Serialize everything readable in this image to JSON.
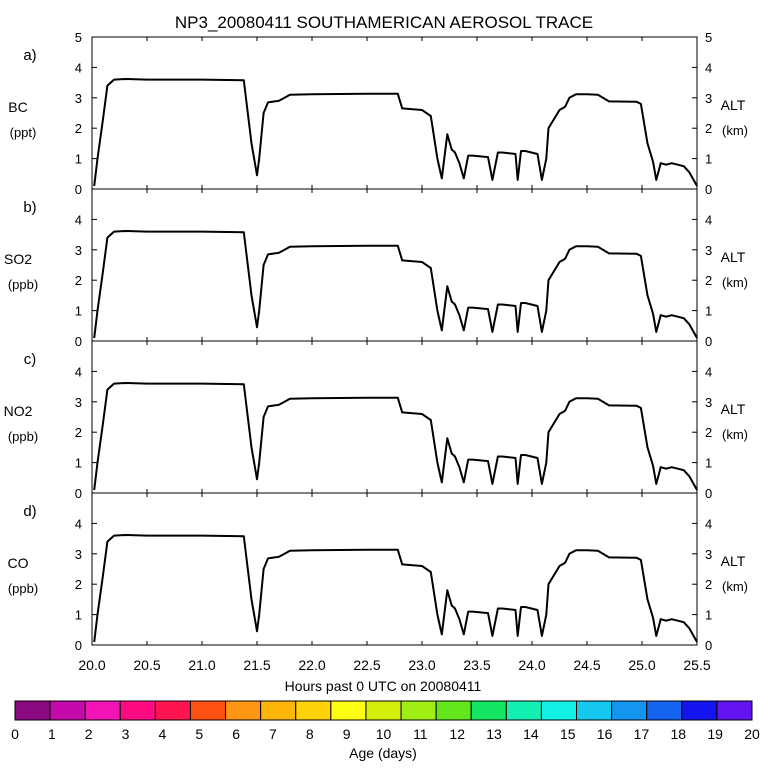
{
  "chart_data": {
    "type": "line",
    "title": "NP3_20080411 SOUTHAMERICAN AEROSOL TRACE",
    "xlabel": "Hours past 0 UTC on 20080411",
    "xlim": [
      20.0,
      25.5
    ],
    "x_ticks": [
      "20.0",
      "20.5",
      "21.0",
      "21.5",
      "22.0",
      "22.5",
      "23.0",
      "23.5",
      "24.0",
      "24.5",
      "25.0",
      "25.5"
    ],
    "right_label": "ALT",
    "right_unit": "(km)",
    "panels": [
      {
        "letter": "a)",
        "label": "BC",
        "unit": "(ppt)",
        "ylim": [
          0,
          5
        ],
        "y_ticks": [
          "0",
          "1",
          "2",
          "3",
          "4",
          "5"
        ],
        "right_ticks": [
          "0",
          "1",
          "2",
          "3",
          "4",
          "5"
        ]
      },
      {
        "letter": "b)",
        "label": "SO2",
        "unit": "(ppb)",
        "ylim": [
          0,
          5
        ],
        "y_ticks": [
          "0",
          "1",
          "2",
          "3",
          "4"
        ],
        "right_ticks": [
          "0",
          "1",
          "2",
          "3",
          "4"
        ]
      },
      {
        "letter": "c)",
        "label": "NO2",
        "unit": "(ppb)",
        "ylim": [
          0,
          5
        ],
        "y_ticks": [
          "0",
          "1",
          "2",
          "3",
          "4"
        ],
        "right_ticks": [
          "0",
          "1",
          "2",
          "3",
          "4"
        ]
      },
      {
        "letter": "d)",
        "label": "CO",
        "unit": "(ppb)",
        "ylim": [
          0,
          5
        ],
        "y_ticks": [
          "0",
          "1",
          "2",
          "3",
          "4"
        ],
        "right_ticks": [
          "0",
          "1",
          "2",
          "3",
          "4"
        ]
      }
    ],
    "altitude_km": {
      "x": [
        20.02,
        20.05,
        20.1,
        20.14,
        20.2,
        20.3,
        20.5,
        21.0,
        21.38,
        21.45,
        21.5,
        21.52,
        21.56,
        21.6,
        21.7,
        21.8,
        22.0,
        22.5,
        22.78,
        22.82,
        23.0,
        23.08,
        23.14,
        23.18,
        23.23,
        23.27,
        23.3,
        23.34,
        23.38,
        23.42,
        23.46,
        23.6,
        23.64,
        23.69,
        23.73,
        23.85,
        23.87,
        23.9,
        23.94,
        24.05,
        24.09,
        24.13,
        24.15,
        24.25,
        24.3,
        24.34,
        24.4,
        24.5,
        24.6,
        24.7,
        24.95,
        24.99,
        25.05,
        25.1,
        25.13,
        25.17,
        25.22,
        25.27,
        25.38,
        25.43,
        25.5
      ],
      "y": [
        0.1,
        1.0,
        2.3,
        3.4,
        3.6,
        3.62,
        3.6,
        3.6,
        3.58,
        1.5,
        0.45,
        1.0,
        2.5,
        2.85,
        2.9,
        3.1,
        3.12,
        3.13,
        3.13,
        2.65,
        2.6,
        2.4,
        1.0,
        0.35,
        1.8,
        1.3,
        1.2,
        0.85,
        0.35,
        1.1,
        1.1,
        1.05,
        0.3,
        1.2,
        1.2,
        1.15,
        0.3,
        1.25,
        1.25,
        1.15,
        0.3,
        1.0,
        2.0,
        2.6,
        2.7,
        3.0,
        3.12,
        3.12,
        3.1,
        2.88,
        2.87,
        2.8,
        1.5,
        0.9,
        0.3,
        0.85,
        0.8,
        0.85,
        0.75,
        0.55,
        0.1
      ]
    },
    "colorbar": {
      "label": "Age (days)",
      "ticks": [
        "0",
        "1",
        "2",
        "3",
        "4",
        "5",
        "6",
        "7",
        "8",
        "9",
        "10",
        "11",
        "12",
        "13",
        "14",
        "15",
        "16",
        "17",
        "18",
        "19",
        "20"
      ],
      "colors": [
        "#8b0a82",
        "#c40aaa",
        "#f214b4",
        "#ff0a82",
        "#ff1450",
        "#ff5014",
        "#ff9614",
        "#ffb40a",
        "#ffd20a",
        "#ffff14",
        "#d2f00a",
        "#a0ee14",
        "#64e61e",
        "#14e664",
        "#14f0b4",
        "#14f0e6",
        "#14c8f0",
        "#1496f0",
        "#1464f0",
        "#1414f0",
        "#6414f0"
      ]
    }
  }
}
